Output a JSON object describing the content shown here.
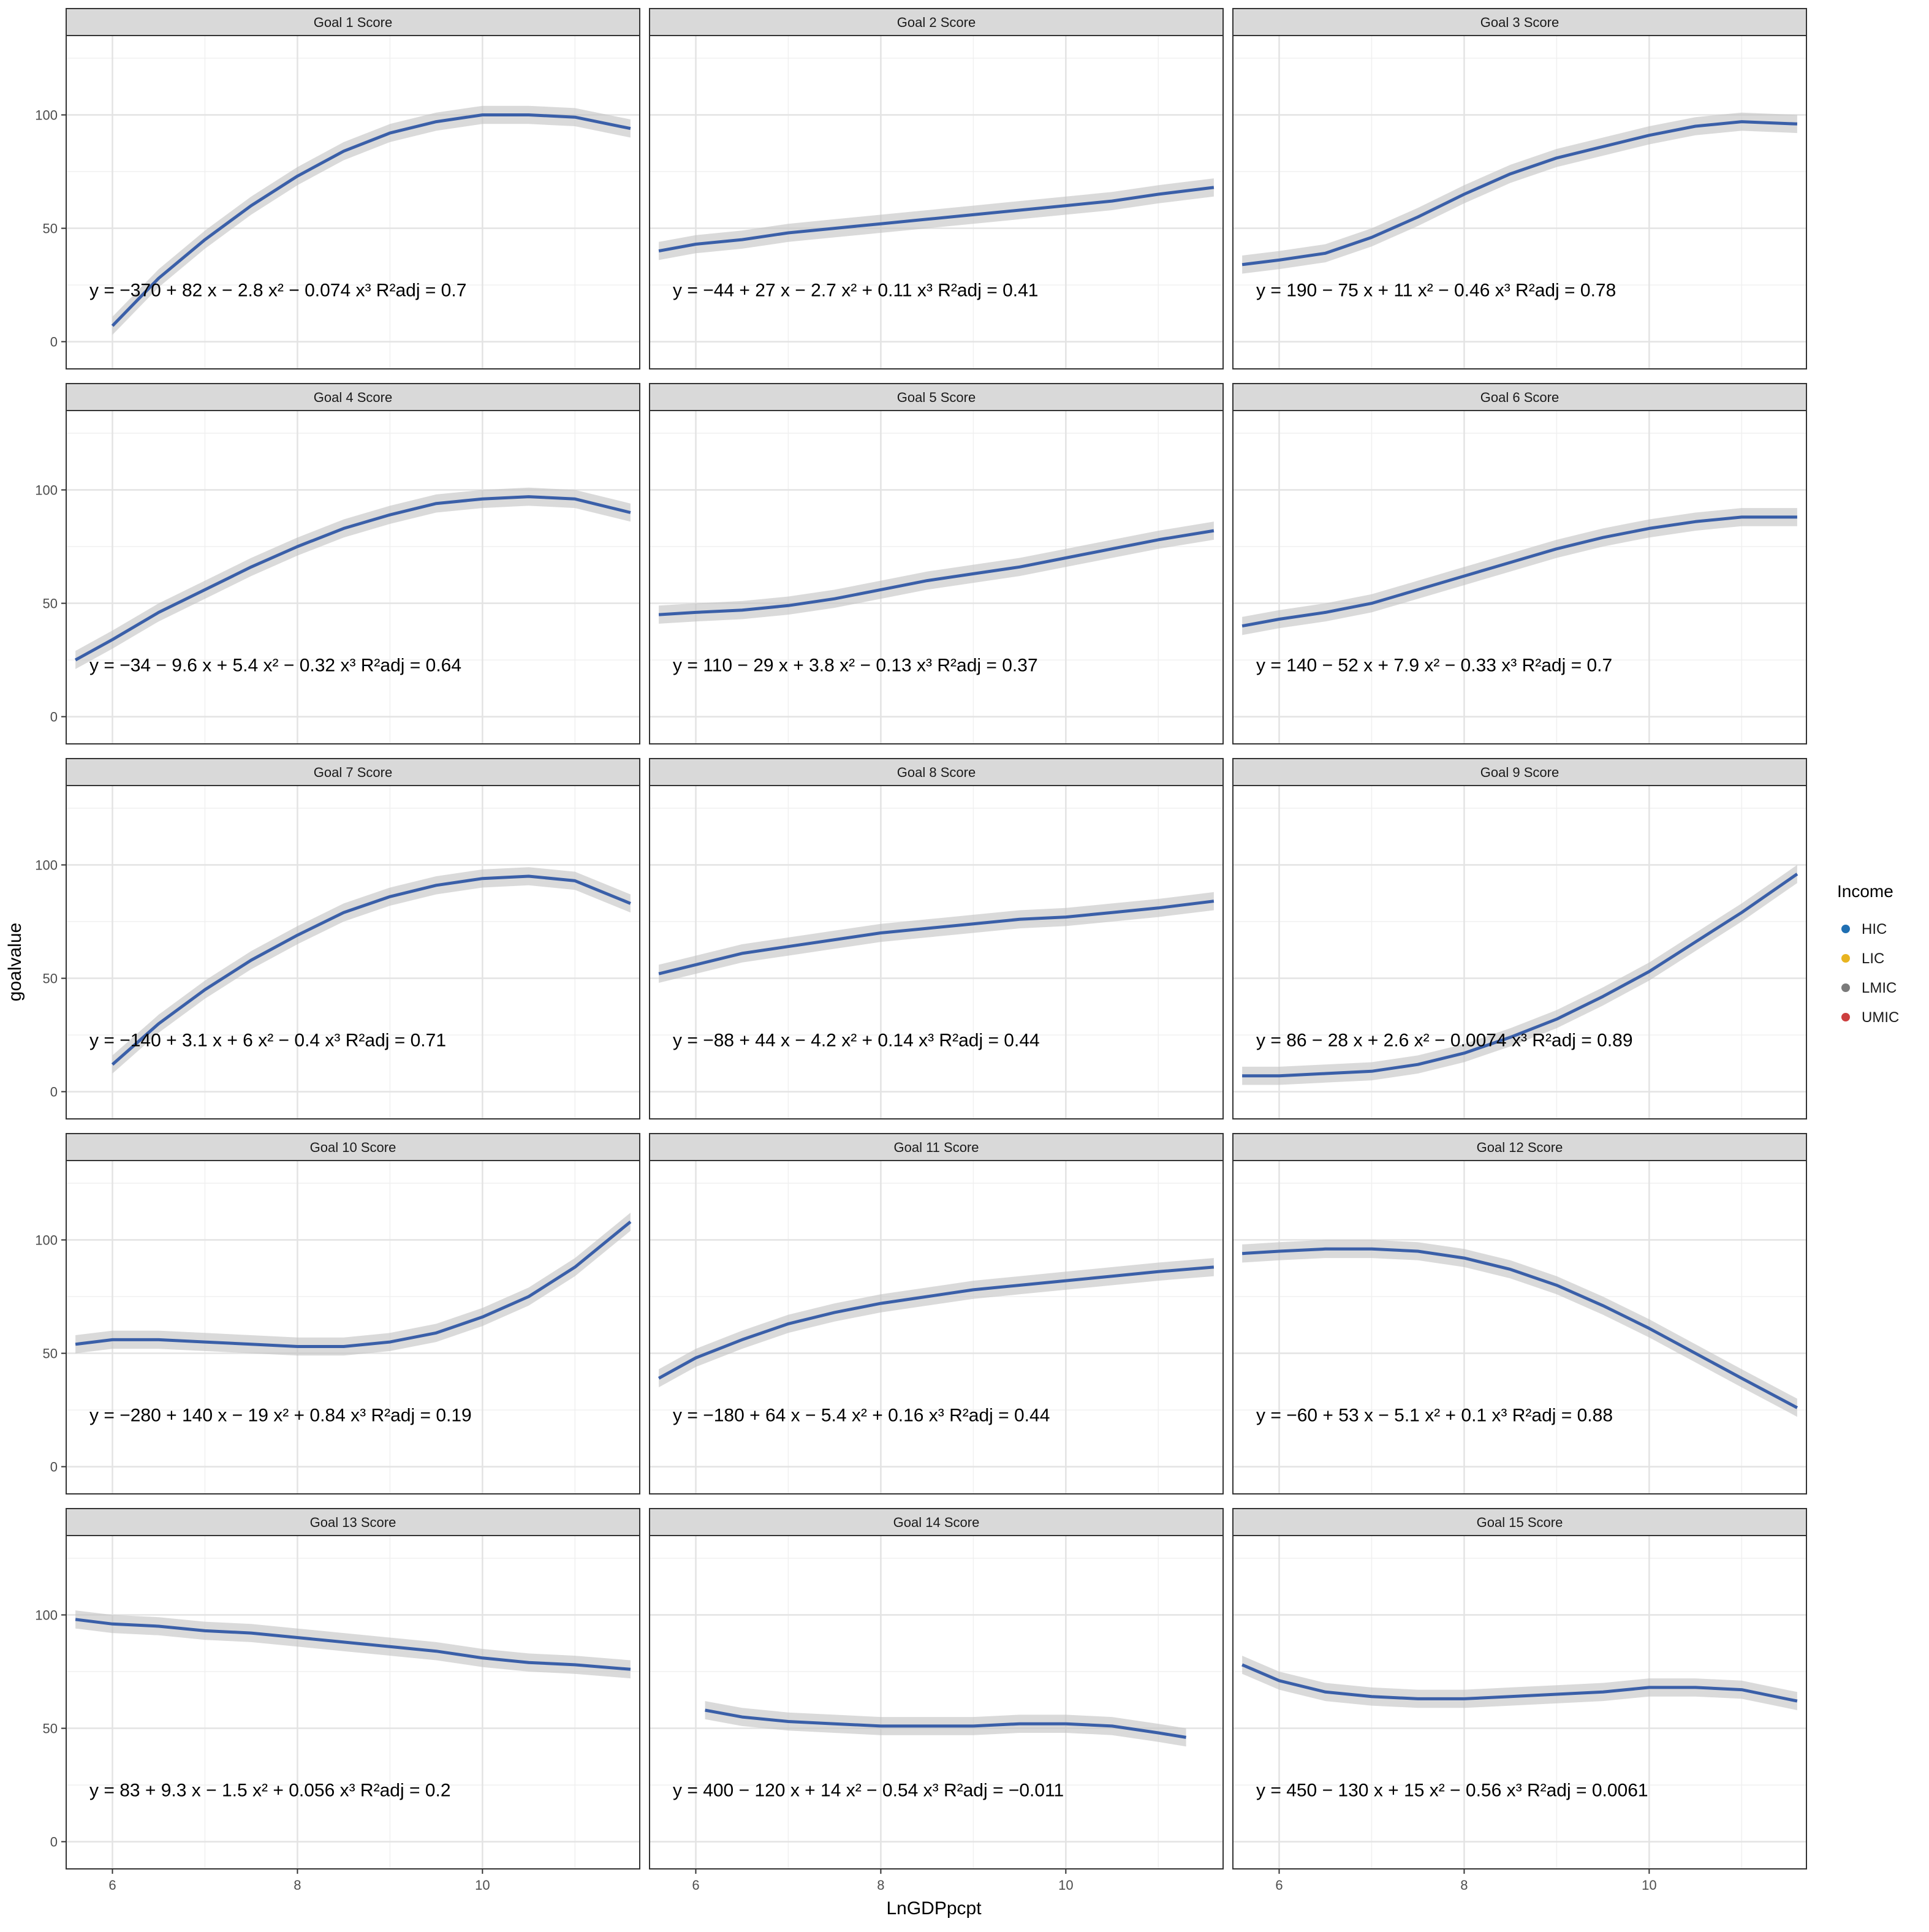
{
  "chart_data": {
    "type": "scatter",
    "xlabel": "LnGDPpcpt",
    "ylabel": "goalvalue",
    "xlim": [
      5.5,
      11.7
    ],
    "ylim": [
      -12,
      135
    ],
    "xticks": [
      6,
      8,
      10
    ],
    "yticks": [
      0,
      50,
      100
    ],
    "legend": {
      "title": "Income",
      "position": "right",
      "items": [
        {
          "label": "HIC",
          "color": "#1f6fb2"
        },
        {
          "label": "LIC",
          "color": "#e8b420"
        },
        {
          "label": "LMIC",
          "color": "#7a7a7a"
        },
        {
          "label": "UMIC",
          "color": "#cc3f3f"
        }
      ]
    },
    "line_color": "#3a5fa8",
    "band_color": "#c2c2c2",
    "panels": [
      {
        "title": "Goal 1 Score",
        "equation": "y = −370 + 82 x − 2.8 x² − 0.074 x³",
        "r2": "R²adj = 0.7",
        "fit": [
          -370,
          82,
          -2.8,
          -0.074
        ],
        "curve": [
          [
            6.0,
            7
          ],
          [
            6.5,
            28
          ],
          [
            7.0,
            45
          ],
          [
            7.5,
            60
          ],
          [
            8.0,
            73
          ],
          [
            8.5,
            84
          ],
          [
            9.0,
            92
          ],
          [
            9.5,
            97
          ],
          [
            10.0,
            100
          ],
          [
            10.5,
            100
          ],
          [
            11.0,
            99
          ],
          [
            11.6,
            94
          ]
        ]
      },
      {
        "title": "Goal 2 Score",
        "equation": "y = −44 + 27 x − 2.7 x² + 0.11 x³",
        "r2": "R²adj = 0.41",
        "fit": [
          -44,
          27,
          -2.7,
          0.11
        ],
        "curve": [
          [
            5.6,
            40
          ],
          [
            6.0,
            43
          ],
          [
            6.5,
            45
          ],
          [
            7.0,
            48
          ],
          [
            7.5,
            50
          ],
          [
            8.0,
            52
          ],
          [
            8.5,
            54
          ],
          [
            9.0,
            56
          ],
          [
            9.5,
            58
          ],
          [
            10.0,
            60
          ],
          [
            10.5,
            62
          ],
          [
            11.0,
            65
          ],
          [
            11.6,
            68
          ]
        ]
      },
      {
        "title": "Goal 3 Score",
        "equation": "y = 190 − 75 x + 11 x² − 0.46 x³",
        "r2": "R²adj = 0.78",
        "fit": [
          190,
          -75,
          11,
          -0.46
        ],
        "curve": [
          [
            5.6,
            34
          ],
          [
            6.0,
            36
          ],
          [
            6.5,
            39
          ],
          [
            7.0,
            46
          ],
          [
            7.5,
            55
          ],
          [
            8.0,
            65
          ],
          [
            8.5,
            74
          ],
          [
            9.0,
            81
          ],
          [
            9.5,
            86
          ],
          [
            10.0,
            91
          ],
          [
            10.5,
            95
          ],
          [
            11.0,
            97
          ],
          [
            11.6,
            96
          ]
        ]
      },
      {
        "title": "Goal 4 Score",
        "equation": "y = −34 − 9.6 x + 5.4 x² − 0.32 x³",
        "r2": "R²adj = 0.64",
        "fit": [
          -34,
          -9.6,
          5.4,
          -0.32
        ],
        "curve": [
          [
            5.6,
            25
          ],
          [
            6.0,
            34
          ],
          [
            6.5,
            46
          ],
          [
            7.0,
            56
          ],
          [
            7.5,
            66
          ],
          [
            8.0,
            75
          ],
          [
            8.5,
            83
          ],
          [
            9.0,
            89
          ],
          [
            9.5,
            94
          ],
          [
            10.0,
            96
          ],
          [
            10.5,
            97
          ],
          [
            11.0,
            96
          ],
          [
            11.6,
            90
          ]
        ]
      },
      {
        "title": "Goal 5 Score",
        "equation": "y = 110 − 29 x + 3.8 x² − 0.13 x³",
        "r2": "R²adj = 0.37",
        "fit": [
          110,
          -29,
          3.8,
          -0.13
        ],
        "curve": [
          [
            5.6,
            45
          ],
          [
            6.0,
            46
          ],
          [
            6.5,
            47
          ],
          [
            7.0,
            49
          ],
          [
            7.5,
            52
          ],
          [
            8.0,
            56
          ],
          [
            8.5,
            60
          ],
          [
            9.0,
            63
          ],
          [
            9.5,
            66
          ],
          [
            10.0,
            70
          ],
          [
            10.5,
            74
          ],
          [
            11.0,
            78
          ],
          [
            11.6,
            82
          ]
        ]
      },
      {
        "title": "Goal 6 Score",
        "equation": "y = 140 − 52 x + 7.9 x² − 0.33 x³",
        "r2": "R²adj = 0.7",
        "fit": [
          140,
          -52,
          7.9,
          -0.33
        ],
        "curve": [
          [
            5.6,
            40
          ],
          [
            6.0,
            43
          ],
          [
            6.5,
            46
          ],
          [
            7.0,
            50
          ],
          [
            7.5,
            56
          ],
          [
            8.0,
            62
          ],
          [
            8.5,
            68
          ],
          [
            9.0,
            74
          ],
          [
            9.5,
            79
          ],
          [
            10.0,
            83
          ],
          [
            10.5,
            86
          ],
          [
            11.0,
            88
          ],
          [
            11.6,
            88
          ]
        ]
      },
      {
        "title": "Goal 7 Score",
        "equation": "y = −140 + 3.1 x + 6 x² − 0.4 x³",
        "r2": "R²adj = 0.71",
        "fit": [
          -140,
          3.1,
          6,
          -0.4
        ],
        "curve": [
          [
            6.0,
            12
          ],
          [
            6.5,
            30
          ],
          [
            7.0,
            45
          ],
          [
            7.5,
            58
          ],
          [
            8.0,
            69
          ],
          [
            8.5,
            79
          ],
          [
            9.0,
            86
          ],
          [
            9.5,
            91
          ],
          [
            10.0,
            94
          ],
          [
            10.5,
            95
          ],
          [
            11.0,
            93
          ],
          [
            11.6,
            83
          ]
        ]
      },
      {
        "title": "Goal 8 Score",
        "equation": "y = −88 + 44 x − 4.2 x² + 0.14 x³",
        "r2": "R²adj = 0.44",
        "fit": [
          -88,
          44,
          -4.2,
          0.14
        ],
        "curve": [
          [
            5.6,
            52
          ],
          [
            6.0,
            56
          ],
          [
            6.5,
            61
          ],
          [
            7.0,
            64
          ],
          [
            7.5,
            67
          ],
          [
            8.0,
            70
          ],
          [
            8.5,
            72
          ],
          [
            9.0,
            74
          ],
          [
            9.5,
            76
          ],
          [
            10.0,
            77
          ],
          [
            10.5,
            79
          ],
          [
            11.0,
            81
          ],
          [
            11.6,
            84
          ]
        ]
      },
      {
        "title": "Goal 9 Score",
        "equation": "y = 86 − 28 x + 2.6 x² − 0.0074 x³",
        "r2": "R²adj = 0.89",
        "fit": [
          86,
          -28,
          2.6,
          -0.0074
        ],
        "curve": [
          [
            5.6,
            7
          ],
          [
            6.0,
            7
          ],
          [
            6.5,
            8
          ],
          [
            7.0,
            9
          ],
          [
            7.5,
            12
          ],
          [
            8.0,
            17
          ],
          [
            8.5,
            24
          ],
          [
            9.0,
            32
          ],
          [
            9.5,
            42
          ],
          [
            10.0,
            53
          ],
          [
            10.5,
            66
          ],
          [
            11.0,
            79
          ],
          [
            11.6,
            96
          ]
        ]
      },
      {
        "title": "Goal 10 Score",
        "equation": "y = −280 + 140 x − 19 x² + 0.84 x³",
        "r2": "R²adj = 0.19",
        "fit": [
          -280,
          140,
          -19,
          0.84
        ],
        "curve": [
          [
            5.6,
            54
          ],
          [
            6.0,
            56
          ],
          [
            6.5,
            56
          ],
          [
            7.0,
            55
          ],
          [
            7.5,
            54
          ],
          [
            8.0,
            53
          ],
          [
            8.5,
            53
          ],
          [
            9.0,
            55
          ],
          [
            9.5,
            59
          ],
          [
            10.0,
            66
          ],
          [
            10.5,
            75
          ],
          [
            11.0,
            88
          ],
          [
            11.6,
            108
          ]
        ]
      },
      {
        "title": "Goal 11 Score",
        "equation": "y = −180 + 64 x − 5.4 x² + 0.16 x³",
        "r2": "R²adj = 0.44",
        "fit": [
          -180,
          64,
          -5.4,
          0.16
        ],
        "curve": [
          [
            5.6,
            39
          ],
          [
            6.0,
            48
          ],
          [
            6.5,
            56
          ],
          [
            7.0,
            63
          ],
          [
            7.5,
            68
          ],
          [
            8.0,
            72
          ],
          [
            8.5,
            75
          ],
          [
            9.0,
            78
          ],
          [
            9.5,
            80
          ],
          [
            10.0,
            82
          ],
          [
            10.5,
            84
          ],
          [
            11.0,
            86
          ],
          [
            11.6,
            88
          ]
        ]
      },
      {
        "title": "Goal 12 Score",
        "equation": "y = −60 + 53 x − 5.1 x² + 0.1 x³",
        "r2": "R²adj = 0.88",
        "fit": [
          -60,
          53,
          -5.1,
          0.1
        ],
        "curve": [
          [
            5.6,
            94
          ],
          [
            6.0,
            95
          ],
          [
            6.5,
            96
          ],
          [
            7.0,
            96
          ],
          [
            7.5,
            95
          ],
          [
            8.0,
            92
          ],
          [
            8.5,
            87
          ],
          [
            9.0,
            80
          ],
          [
            9.5,
            71
          ],
          [
            10.0,
            61
          ],
          [
            10.5,
            50
          ],
          [
            11.0,
            39
          ],
          [
            11.6,
            26
          ]
        ]
      },
      {
        "title": "Goal 13 Score",
        "equation": "y = 83 + 9.3 x − 1.5 x² + 0.056 x³",
        "r2": "R²adj = 0.2",
        "fit": [
          83,
          9.3,
          -1.5,
          0.056
        ],
        "curve": [
          [
            5.6,
            98
          ],
          [
            6.0,
            96
          ],
          [
            6.5,
            95
          ],
          [
            7.0,
            93
          ],
          [
            7.5,
            92
          ],
          [
            8.0,
            90
          ],
          [
            8.5,
            88
          ],
          [
            9.0,
            86
          ],
          [
            9.5,
            84
          ],
          [
            10.0,
            81
          ],
          [
            10.5,
            79
          ],
          [
            11.0,
            78
          ],
          [
            11.6,
            76
          ]
        ]
      },
      {
        "title": "Goal 14 Score",
        "equation": "y = 400 − 120 x + 14 x² − 0.54 x³",
        "r2": "R²adj = −0.011",
        "fit": [
          400,
          -120,
          14,
          -0.54
        ],
        "curve": [
          [
            6.1,
            58
          ],
          [
            6.5,
            55
          ],
          [
            7.0,
            53
          ],
          [
            7.5,
            52
          ],
          [
            8.0,
            51
          ],
          [
            8.5,
            51
          ],
          [
            9.0,
            51
          ],
          [
            9.5,
            52
          ],
          [
            10.0,
            52
          ],
          [
            10.5,
            51
          ],
          [
            11.0,
            48
          ],
          [
            11.3,
            46
          ]
        ]
      },
      {
        "title": "Goal 15 Score",
        "equation": "y = 450 − 130 x + 15 x² − 0.56 x³",
        "r2": "R²adj = 0.0061",
        "fit": [
          450,
          -130,
          15,
          -0.56
        ],
        "curve": [
          [
            5.6,
            78
          ],
          [
            6.0,
            71
          ],
          [
            6.5,
            66
          ],
          [
            7.0,
            64
          ],
          [
            7.5,
            63
          ],
          [
            8.0,
            63
          ],
          [
            8.5,
            64
          ],
          [
            9.0,
            65
          ],
          [
            9.5,
            66
          ],
          [
            10.0,
            68
          ],
          [
            10.5,
            68
          ],
          [
            11.0,
            67
          ],
          [
            11.6,
            62
          ]
        ]
      }
    ]
  }
}
